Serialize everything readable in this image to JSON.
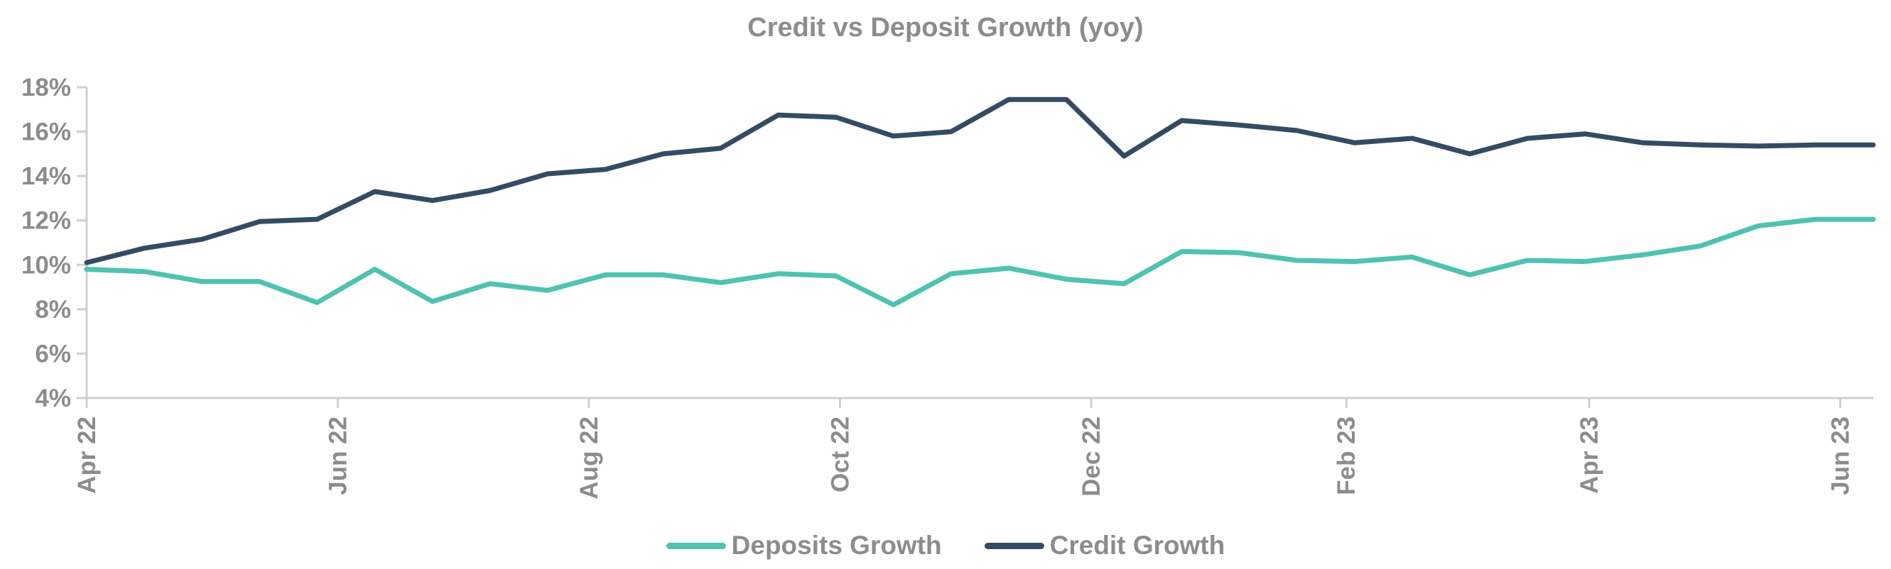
{
  "chart_data": {
    "type": "line",
    "title": "Credit vs Deposit Growth (yoy)",
    "xlabel": "",
    "ylabel": "",
    "ylim": [
      0.04,
      0.18
    ],
    "yticks": [
      "4%",
      "6%",
      "8%",
      "10%",
      "12%",
      "14%",
      "16%",
      "18%"
    ],
    "x": [
      "2022-04-01",
      "2022-04-15",
      "2022-04-29",
      "2022-05-13",
      "2022-05-27",
      "2022-06-10",
      "2022-06-24",
      "2022-07-08",
      "2022-07-22",
      "2022-08-05",
      "2022-08-19",
      "2022-09-02",
      "2022-09-16",
      "2022-09-30",
      "2022-10-14",
      "2022-10-28",
      "2022-11-11",
      "2022-11-25",
      "2022-12-09",
      "2022-12-23",
      "2023-01-06",
      "2023-01-20",
      "2023-02-03",
      "2023-02-17",
      "2023-03-03",
      "2023-03-17",
      "2023-03-31",
      "2023-04-14",
      "2023-04-28",
      "2023-05-12",
      "2023-05-26",
      "2023-06-09"
    ],
    "x_tick_labels": [
      {
        "date": "2022-04-01",
        "label": "Apr 22"
      },
      {
        "date": "2022-06-01",
        "label": "Jun 22"
      },
      {
        "date": "2022-08-01",
        "label": "Aug 22"
      },
      {
        "date": "2022-10-01",
        "label": "Oct 22"
      },
      {
        "date": "2022-12-01",
        "label": "Dec 22"
      },
      {
        "date": "2023-02-01",
        "label": "Feb 23"
      },
      {
        "date": "2023-04-01",
        "label": "Apr 23"
      },
      {
        "date": "2023-06-01",
        "label": "Jun 23"
      }
    ],
    "x_range": [
      "2022-04-01",
      "2023-06-09"
    ],
    "series": [
      {
        "name": "Deposits Growth",
        "color": "#4fc2b0",
        "values": [
          0.098,
          0.097,
          0.0925,
          0.0925,
          0.083,
          0.098,
          0.0835,
          0.0915,
          0.0885,
          0.0955,
          0.0955,
          0.092,
          0.096,
          0.095,
          0.082,
          0.096,
          0.0985,
          0.0935,
          0.0915,
          0.106,
          0.1055,
          0.102,
          0.1015,
          0.1035,
          0.0955,
          0.102,
          0.1015,
          0.1045,
          0.1085,
          0.1175,
          0.1205,
          0.1205
        ]
      },
      {
        "name": "Credit Growth",
        "color": "#344b63",
        "values": [
          0.101,
          0.1075,
          0.1115,
          0.1195,
          0.1205,
          0.133,
          0.129,
          0.1335,
          0.141,
          0.143,
          0.15,
          0.1525,
          0.1675,
          0.1665,
          0.158,
          0.16,
          0.1745,
          0.1745,
          0.149,
          0.165,
          0.163,
          0.1605,
          0.155,
          0.157,
          0.15,
          0.157,
          0.159,
          0.155,
          0.154,
          0.1535,
          0.154,
          0.154
        ]
      }
    ],
    "legend_position": "bottom",
    "grid": false
  }
}
